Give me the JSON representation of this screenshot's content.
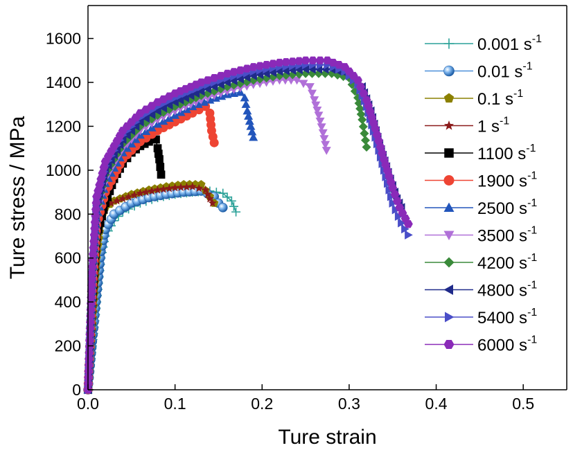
{
  "chart_data": {
    "type": "line",
    "xlabel": "Ture strain",
    "ylabel": "Ture stress / MPa",
    "xlim": [
      0,
      0.55
    ],
    "ylim": [
      0,
      1750
    ],
    "xticks": [
      0.0,
      0.1,
      0.2,
      0.3,
      0.4,
      0.5
    ],
    "xtick_labels": [
      "0.0",
      "0.1",
      "0.2",
      "0.3",
      "0.4",
      "0.5"
    ],
    "yticks": [
      0,
      200,
      400,
      600,
      800,
      1000,
      1200,
      1400,
      1600
    ],
    "ytick_labels": [
      "0",
      "200",
      "400",
      "600",
      "800",
      "1000",
      "1200",
      "1400",
      "1600"
    ],
    "grid": false,
    "legend_position": "right",
    "series": [
      {
        "name": "0.001 s",
        "sup": "-1",
        "color": "#2aa198",
        "marker": "plus",
        "points": [
          [
            0,
            0
          ],
          [
            0.005,
            200
          ],
          [
            0.01,
            400
          ],
          [
            0.015,
            600
          ],
          [
            0.02,
            700
          ],
          [
            0.03,
            770
          ],
          [
            0.04,
            810
          ],
          [
            0.06,
            850
          ],
          [
            0.08,
            875
          ],
          [
            0.1,
            890
          ],
          [
            0.12,
            900
          ],
          [
            0.14,
            905
          ],
          [
            0.155,
            895
          ],
          [
            0.165,
            860
          ],
          [
            0.17,
            810
          ]
        ]
      },
      {
        "name": "0.01 s",
        "sup": "-1",
        "color": "#4a90d9",
        "marker": "sphere",
        "points": [
          [
            0,
            0
          ],
          [
            0.005,
            220
          ],
          [
            0.01,
            430
          ],
          [
            0.015,
            630
          ],
          [
            0.02,
            730
          ],
          [
            0.03,
            800
          ],
          [
            0.05,
            850
          ],
          [
            0.07,
            875
          ],
          [
            0.09,
            890
          ],
          [
            0.11,
            900
          ],
          [
            0.13,
            905
          ],
          [
            0.145,
            880
          ],
          [
            0.15,
            850
          ],
          [
            0.155,
            830
          ]
        ]
      },
      {
        "name": "0.1 s",
        "sup": "-1",
        "color": "#8b8000",
        "marker": "pentagon",
        "points": [
          [
            0,
            0
          ],
          [
            0.005,
            300
          ],
          [
            0.01,
            600
          ],
          [
            0.015,
            780
          ],
          [
            0.02,
            830
          ],
          [
            0.03,
            860
          ],
          [
            0.05,
            890
          ],
          [
            0.07,
            910
          ],
          [
            0.09,
            925
          ],
          [
            0.11,
            935
          ],
          [
            0.13,
            935
          ],
          [
            0.14,
            880
          ],
          [
            0.145,
            850
          ]
        ]
      },
      {
        "name": "1 s",
        "sup": "-1",
        "color": "#8b1a1a",
        "marker": "star",
        "points": [
          [
            0,
            0
          ],
          [
            0.005,
            350
          ],
          [
            0.01,
            650
          ],
          [
            0.015,
            800
          ],
          [
            0.02,
            840
          ],
          [
            0.04,
            870
          ],
          [
            0.06,
            895
          ],
          [
            0.08,
            910
          ],
          [
            0.1,
            920
          ],
          [
            0.12,
            925
          ],
          [
            0.135,
            910
          ],
          [
            0.14,
            870
          ],
          [
            0.143,
            850
          ]
        ]
      },
      {
        "name": "1100 s",
        "sup": "-1",
        "color": "#000000",
        "marker": "square",
        "points": [
          [
            0,
            0
          ],
          [
            0.005,
            400
          ],
          [
            0.01,
            700
          ],
          [
            0.02,
            850
          ],
          [
            0.03,
            960
          ],
          [
            0.04,
            1030
          ],
          [
            0.05,
            1080
          ],
          [
            0.06,
            1110
          ],
          [
            0.07,
            1130
          ],
          [
            0.078,
            1140
          ],
          [
            0.08,
            1100
          ],
          [
            0.082,
            1050
          ],
          [
            0.084,
            980
          ]
        ]
      },
      {
        "name": "1900 s",
        "sup": "-1",
        "color": "#ee4433",
        "marker": "circle",
        "points": [
          [
            0,
            0
          ],
          [
            0.005,
            450
          ],
          [
            0.01,
            750
          ],
          [
            0.02,
            900
          ],
          [
            0.04,
            1050
          ],
          [
            0.06,
            1130
          ],
          [
            0.08,
            1180
          ],
          [
            0.1,
            1220
          ],
          [
            0.12,
            1260
          ],
          [
            0.135,
            1290
          ],
          [
            0.14,
            1260
          ],
          [
            0.142,
            1180
          ],
          [
            0.145,
            1125
          ]
        ]
      },
      {
        "name": "2500 s",
        "sup": "-1",
        "color": "#2255bb",
        "marker": "triangle-up",
        "points": [
          [
            0,
            0
          ],
          [
            0.005,
            480
          ],
          [
            0.01,
            780
          ],
          [
            0.02,
            940
          ],
          [
            0.04,
            1080
          ],
          [
            0.06,
            1160
          ],
          [
            0.08,
            1210
          ],
          [
            0.1,
            1250
          ],
          [
            0.12,
            1290
          ],
          [
            0.14,
            1320
          ],
          [
            0.16,
            1345
          ],
          [
            0.175,
            1355
          ],
          [
            0.18,
            1330
          ],
          [
            0.183,
            1270
          ],
          [
            0.187,
            1200
          ],
          [
            0.19,
            1150
          ]
        ]
      },
      {
        "name": "3500 s",
        "sup": "-1",
        "color": "#b070d8",
        "marker": "triangle-down",
        "points": [
          [
            0,
            0
          ],
          [
            0.005,
            500
          ],
          [
            0.01,
            800
          ],
          [
            0.02,
            960
          ],
          [
            0.04,
            1100
          ],
          [
            0.06,
            1180
          ],
          [
            0.08,
            1230
          ],
          [
            0.1,
            1270
          ],
          [
            0.13,
            1320
          ],
          [
            0.16,
            1360
          ],
          [
            0.19,
            1390
          ],
          [
            0.22,
            1410
          ],
          [
            0.24,
            1410
          ],
          [
            0.255,
            1380
          ],
          [
            0.26,
            1320
          ],
          [
            0.265,
            1250
          ],
          [
            0.27,
            1170
          ],
          [
            0.274,
            1090
          ]
        ]
      },
      {
        "name": "4200 s",
        "sup": "-1",
        "color": "#3a8a3a",
        "marker": "diamond",
        "points": [
          [
            0,
            0
          ],
          [
            0.005,
            520
          ],
          [
            0.01,
            820
          ],
          [
            0.02,
            980
          ],
          [
            0.04,
            1120
          ],
          [
            0.06,
            1200
          ],
          [
            0.08,
            1250
          ],
          [
            0.1,
            1290
          ],
          [
            0.13,
            1340
          ],
          [
            0.16,
            1380
          ],
          [
            0.19,
            1410
          ],
          [
            0.22,
            1430
          ],
          [
            0.25,
            1440
          ],
          [
            0.28,
            1440
          ],
          [
            0.3,
            1420
          ],
          [
            0.31,
            1330
          ],
          [
            0.315,
            1230
          ],
          [
            0.32,
            1105
          ]
        ]
      },
      {
        "name": "4800 s",
        "sup": "-1",
        "color": "#1f2a8a",
        "marker": "triangle-left",
        "points": [
          [
            0,
            0
          ],
          [
            0.005,
            540
          ],
          [
            0.01,
            840
          ],
          [
            0.02,
            1000
          ],
          [
            0.04,
            1140
          ],
          [
            0.06,
            1220
          ],
          [
            0.08,
            1270
          ],
          [
            0.1,
            1310
          ],
          [
            0.13,
            1360
          ],
          [
            0.16,
            1400
          ],
          [
            0.19,
            1430
          ],
          [
            0.22,
            1450
          ],
          [
            0.25,
            1460
          ],
          [
            0.28,
            1460
          ],
          [
            0.3,
            1440
          ],
          [
            0.315,
            1380
          ],
          [
            0.325,
            1270
          ],
          [
            0.335,
            1120
          ],
          [
            0.345,
            990
          ],
          [
            0.355,
            870
          ],
          [
            0.36,
            830
          ]
        ]
      },
      {
        "name": "5400 s",
        "sup": "-1",
        "color": "#4a4ec8",
        "marker": "triangle-right",
        "points": [
          [
            0,
            0
          ],
          [
            0.005,
            550
          ],
          [
            0.01,
            860
          ],
          [
            0.02,
            1020
          ],
          [
            0.04,
            1160
          ],
          [
            0.06,
            1240
          ],
          [
            0.08,
            1290
          ],
          [
            0.1,
            1330
          ],
          [
            0.13,
            1380
          ],
          [
            0.16,
            1420
          ],
          [
            0.19,
            1450
          ],
          [
            0.22,
            1470
          ],
          [
            0.25,
            1480
          ],
          [
            0.275,
            1480
          ],
          [
            0.295,
            1450
          ],
          [
            0.31,
            1390
          ],
          [
            0.32,
            1290
          ],
          [
            0.33,
            1150
          ],
          [
            0.34,
            1000
          ],
          [
            0.35,
            850
          ],
          [
            0.36,
            760
          ],
          [
            0.368,
            705
          ]
        ]
      },
      {
        "name": "6000 s",
        "sup": "-1",
        "color": "#8a2ab8",
        "marker": "hexagon",
        "points": [
          [
            0,
            0
          ],
          [
            0.005,
            560
          ],
          [
            0.01,
            880
          ],
          [
            0.02,
            1040
          ],
          [
            0.04,
            1180
          ],
          [
            0.06,
            1260
          ],
          [
            0.08,
            1310
          ],
          [
            0.1,
            1350
          ],
          [
            0.13,
            1400
          ],
          [
            0.16,
            1440
          ],
          [
            0.19,
            1470
          ],
          [
            0.22,
            1490
          ],
          [
            0.25,
            1500
          ],
          [
            0.275,
            1500
          ],
          [
            0.295,
            1470
          ],
          [
            0.31,
            1410
          ],
          [
            0.32,
            1320
          ],
          [
            0.33,
            1190
          ],
          [
            0.34,
            1050
          ],
          [
            0.35,
            920
          ],
          [
            0.358,
            830
          ],
          [
            0.368,
            755
          ]
        ]
      }
    ]
  }
}
